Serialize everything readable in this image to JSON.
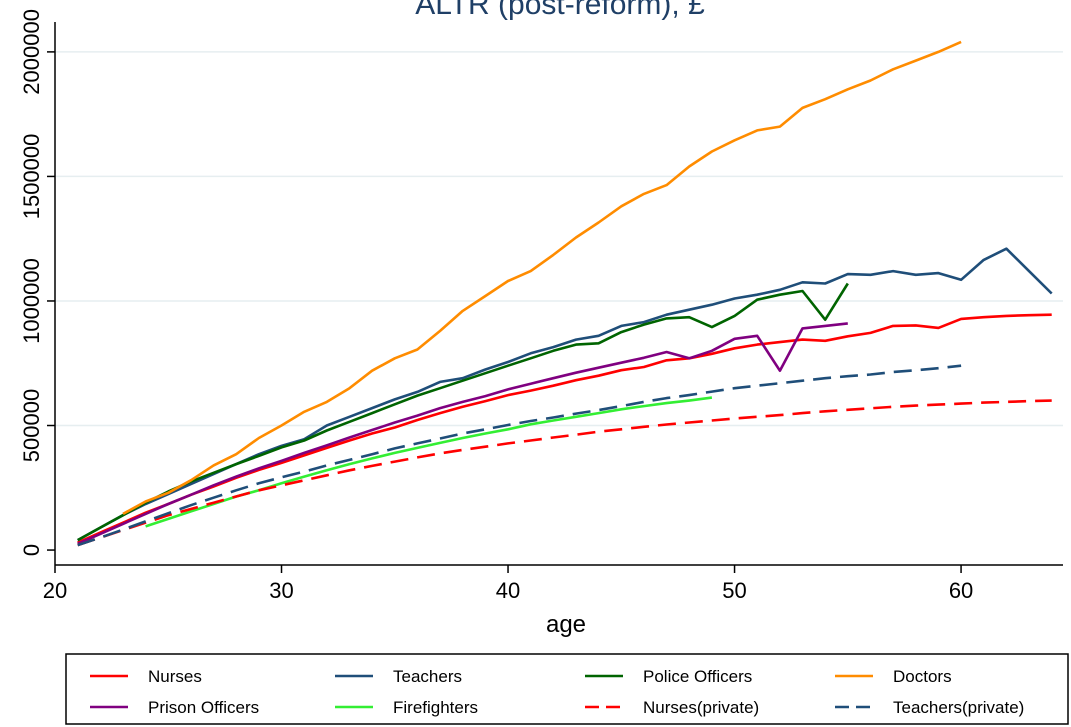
{
  "chart_data": {
    "type": "line",
    "title": "ALTR (post-reform), £",
    "xlabel": "age",
    "ylabel": "",
    "xlim": [
      20,
      64.5
    ],
    "ylim": [
      -60000,
      2120000
    ],
    "x_ticks": [
      20,
      30,
      40,
      50,
      60
    ],
    "y_ticks": [
      0,
      500000,
      1000000,
      1500000,
      2000000
    ],
    "x_tick_labels": [
      "20",
      "30",
      "40",
      "50",
      "60"
    ],
    "y_tick_labels": [
      "0",
      "500000",
      "1000000",
      "1500000",
      "2000000"
    ],
    "grid": "horizontal",
    "legend_position": "bottom",
    "series": [
      {
        "name": "Nurses",
        "color": "#ff0000",
        "dash": "solid",
        "x": [
          21,
          22,
          23,
          24,
          25,
          26,
          27,
          28,
          29,
          30,
          31,
          32,
          33,
          34,
          35,
          36,
          37,
          38,
          39,
          40,
          41,
          42,
          43,
          44,
          45,
          46,
          47,
          48,
          49,
          50,
          51,
          52,
          53,
          54,
          55,
          56,
          57,
          58,
          59,
          60,
          61,
          62,
          63,
          64
        ],
        "y": [
          30000,
          70000,
          110000,
          150000,
          185000,
          222000,
          255000,
          290000,
          322000,
          350000,
          380000,
          410000,
          440000,
          468000,
          492000,
          522000,
          550000,
          575000,
          598000,
          622000,
          640000,
          660000,
          682000,
          700000,
          722000,
          735000,
          762000,
          770000,
          788000,
          810000,
          825000,
          835000,
          845000,
          840000,
          858000,
          872000,
          900000,
          902000,
          892000,
          928000,
          935000,
          940000,
          943000,
          945000
        ]
      },
      {
        "name": "Teachers",
        "color": "#1f4e79",
        "dash": "solid",
        "x": [
          21,
          22,
          23,
          24,
          25,
          26,
          27,
          28,
          29,
          30,
          31,
          32,
          33,
          34,
          35,
          36,
          37,
          38,
          39,
          40,
          41,
          42,
          43,
          44,
          45,
          46,
          47,
          48,
          49,
          50,
          51,
          52,
          53,
          54,
          55,
          56,
          57,
          58,
          59,
          60,
          61,
          62,
          63,
          64
        ],
        "y": [
          40000,
          90000,
          140000,
          185000,
          225000,
          265000,
          305000,
          345000,
          385000,
          418000,
          445000,
          500000,
          535000,
          570000,
          605000,
          635000,
          675000,
          690000,
          725000,
          755000,
          790000,
          815000,
          845000,
          860000,
          900000,
          915000,
          945000,
          965000,
          985000,
          1010000,
          1025000,
          1045000,
          1075000,
          1070000,
          1108000,
          1105000,
          1120000,
          1105000,
          1112000,
          1085000,
          1165000,
          1210000,
          1120000,
          1030000
        ]
      },
      {
        "name": "Police Officers",
        "color": "#006400",
        "dash": "solid",
        "x": [
          21,
          22,
          23,
          24,
          25,
          26,
          27,
          28,
          29,
          30,
          31,
          32,
          33,
          34,
          35,
          36,
          37,
          38,
          39,
          40,
          41,
          42,
          43,
          44,
          45,
          46,
          47,
          48,
          49,
          50,
          51,
          52,
          53,
          54,
          55
        ],
        "y": [
          40000,
          90000,
          140000,
          190000,
          235000,
          275000,
          310000,
          345000,
          378000,
          412000,
          440000,
          480000,
          515000,
          550000,
          585000,
          620000,
          650000,
          680000,
          710000,
          740000,
          770000,
          800000,
          825000,
          830000,
          875000,
          905000,
          930000,
          935000,
          895000,
          940000,
          1005000,
          1025000,
          1040000,
          925000,
          1070000
        ]
      },
      {
        "name": "Doctors",
        "color": "#ff8c00",
        "dash": "solid",
        "x": [
          23,
          24,
          25,
          26,
          27,
          28,
          29,
          30,
          31,
          32,
          33,
          34,
          35,
          36,
          37,
          38,
          39,
          40,
          41,
          42,
          43,
          44,
          45,
          46,
          47,
          48,
          49,
          50,
          51,
          52,
          53,
          54,
          55,
          56,
          57,
          58,
          59,
          60
        ],
        "y": [
          145000,
          195000,
          230000,
          280000,
          340000,
          385000,
          450000,
          500000,
          555000,
          595000,
          650000,
          720000,
          770000,
          805000,
          880000,
          960000,
          1020000,
          1080000,
          1120000,
          1185000,
          1255000,
          1315000,
          1380000,
          1430000,
          1465000,
          1540000,
          1600000,
          1645000,
          1685000,
          1700000,
          1775000,
          1810000,
          1850000,
          1885000,
          1930000,
          1965000,
          2000000,
          2040000
        ]
      },
      {
        "name": "Prison Officers",
        "color": "#800080",
        "dash": "solid",
        "x": [
          21,
          22,
          23,
          24,
          25,
          26,
          27,
          28,
          29,
          30,
          31,
          32,
          33,
          34,
          35,
          36,
          37,
          38,
          39,
          40,
          41,
          42,
          43,
          44,
          45,
          46,
          47,
          48,
          49,
          50,
          51,
          52,
          53,
          54,
          55
        ],
        "y": [
          25000,
          65000,
          105000,
          145000,
          185000,
          222000,
          260000,
          295000,
          328000,
          358000,
          390000,
          420000,
          452000,
          482000,
          512000,
          540000,
          570000,
          595000,
          618000,
          645000,
          668000,
          690000,
          712000,
          732000,
          752000,
          772000,
          795000,
          770000,
          800000,
          848000,
          860000,
          720000,
          890000,
          900000,
          910000
        ]
      },
      {
        "name": "Firefighters",
        "color": "#33ee33",
        "dash": "solid",
        "x": [
          24,
          25,
          26,
          27,
          28,
          29,
          30,
          31,
          32,
          33,
          34,
          35,
          36,
          37,
          38,
          39,
          40,
          41,
          42,
          43,
          44,
          45,
          46,
          47,
          48,
          49
        ],
        "y": [
          95000,
          125000,
          155000,
          185000,
          215000,
          240000,
          268000,
          295000,
          320000,
          345000,
          368000,
          390000,
          410000,
          430000,
          450000,
          468000,
          485000,
          505000,
          520000,
          535000,
          550000,
          565000,
          578000,
          590000,
          600000,
          612000
        ]
      },
      {
        "name": "Nurses(private)",
        "color": "#ff0000",
        "dash": "dashed",
        "x": [
          21,
          22,
          23,
          24,
          25,
          26,
          27,
          28,
          29,
          30,
          31,
          32,
          33,
          34,
          35,
          36,
          37,
          38,
          39,
          40,
          41,
          42,
          43,
          44,
          45,
          46,
          47,
          48,
          49,
          50,
          51,
          52,
          53,
          54,
          55,
          56,
          57,
          58,
          59,
          60,
          61,
          62,
          63,
          64
        ],
        "y": [
          20000,
          50000,
          80000,
          110000,
          140000,
          165000,
          190000,
          215000,
          240000,
          260000,
          280000,
          300000,
          320000,
          338000,
          355000,
          372000,
          388000,
          402000,
          415000,
          428000,
          440000,
          452000,
          463000,
          475000,
          485000,
          495000,
          504000,
          512000,
          520000,
          528000,
          535000,
          542000,
          550000,
          557000,
          563000,
          569000,
          575000,
          580000,
          584000,
          588000,
          592000,
          595000,
          598000,
          600000
        ]
      },
      {
        "name": "Teachers(private)",
        "color": "#1f4e79",
        "dash": "dashed",
        "x": [
          21,
          22,
          23,
          24,
          25,
          26,
          27,
          28,
          29,
          30,
          31,
          32,
          33,
          34,
          35,
          36,
          37,
          38,
          39,
          40,
          41,
          42,
          43,
          44,
          45,
          46,
          47,
          48,
          49,
          50,
          51,
          52,
          53,
          54,
          55,
          56,
          57,
          58,
          59,
          60
        ],
        "y": [
          20000,
          50000,
          82000,
          115000,
          148000,
          180000,
          210000,
          240000,
          268000,
          292000,
          315000,
          340000,
          362000,
          385000,
          408000,
          428000,
          448000,
          468000,
          485000,
          502000,
          518000,
          532000,
          548000,
          562000,
          578000,
          595000,
          610000,
          622000,
          636000,
          650000,
          660000,
          670000,
          680000,
          690000,
          698000,
          705000,
          715000,
          722000,
          730000,
          740000
        ]
      }
    ]
  }
}
